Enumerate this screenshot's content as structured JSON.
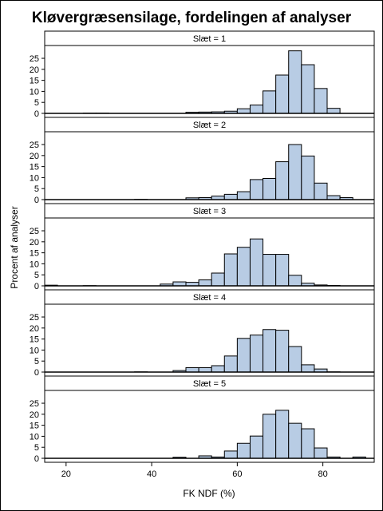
{
  "chart_data": {
    "type": "bar",
    "title": "Kløvergræsensilage, fordelingen af analyser",
    "xlabel": "FK NDF (%)",
    "ylabel": "Procent af analyser",
    "xlim": [
      15,
      92
    ],
    "ylim": [
      0,
      29
    ],
    "xticks": [
      "20",
      "40",
      "60",
      "80"
    ],
    "yticks": [
      "0",
      "5",
      "10",
      "15",
      "20",
      "25"
    ],
    "bin_width": 3,
    "bins": [
      16.5,
      19.5,
      22.5,
      25.5,
      28.5,
      31.5,
      34.5,
      37.5,
      40.5,
      43.5,
      46.5,
      49.5,
      52.5,
      55.5,
      58.5,
      61.5,
      64.5,
      67.5,
      70.5,
      73.5,
      76.5,
      79.5,
      82.5,
      85.5,
      88.5
    ],
    "bar_color": "#b8cce4",
    "panels": [
      {
        "label": "Slæt = 1",
        "values": [
          0,
          0,
          0,
          0.1,
          0.1,
          0,
          0,
          0,
          0,
          0,
          0,
          0.5,
          0.6,
          0.7,
          1,
          2.1,
          3.8,
          10.2,
          17.4,
          28.4,
          22.1,
          11.3,
          2.3,
          0,
          0
        ]
      },
      {
        "label": "Slæt = 2",
        "values": [
          0,
          0,
          0,
          0,
          0,
          0,
          0,
          0.1,
          0,
          0,
          0,
          0.8,
          0.9,
          1.6,
          2.4,
          3.6,
          9.1,
          9.6,
          17.2,
          25,
          19.8,
          7.5,
          1.8,
          0.9,
          0
        ]
      },
      {
        "label": "Slæt = 3",
        "values": [
          0.3,
          0,
          0,
          0.1,
          0,
          0,
          0,
          0,
          0,
          0.8,
          1.8,
          1.6,
          2.7,
          5.8,
          14.5,
          17.5,
          21.3,
          14.3,
          14.3,
          4.8,
          1.2,
          0.4,
          0.2,
          0,
          0
        ]
      },
      {
        "label": "Slæt = 4",
        "values": [
          0,
          0,
          0,
          0,
          0,
          0,
          0,
          0.1,
          0,
          0,
          0.7,
          2,
          2,
          2.9,
          7.3,
          15.3,
          16.8,
          19.3,
          19,
          11.6,
          3.3,
          1.4,
          0.1,
          0,
          0
        ]
      },
      {
        "label": "Slæt = 5",
        "values": [
          0,
          0,
          0,
          0,
          0,
          0,
          0,
          0,
          0,
          0,
          0.5,
          0,
          1.1,
          0.6,
          3.3,
          6.8,
          10.1,
          20,
          21.8,
          15.9,
          13.4,
          4.7,
          0.6,
          0,
          0.6
        ]
      }
    ]
  }
}
